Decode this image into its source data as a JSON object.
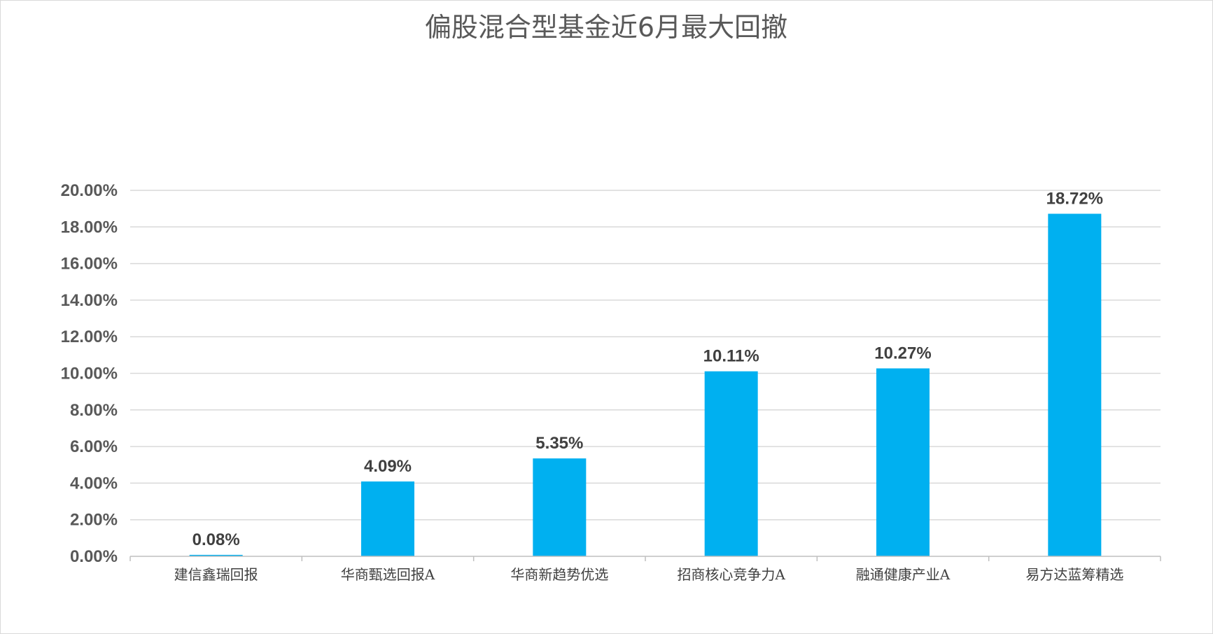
{
  "chart_data": {
    "type": "bar",
    "title": "偏股混合型基金近6月最大回撤",
    "categories": [
      "建信鑫瑞回报",
      "华商甄选回报A",
      "华商新趋势优选",
      "招商核心竞争力A",
      "融通健康产业A",
      "易方达蓝筹精选"
    ],
    "values": [
      0.08,
      4.09,
      5.35,
      10.11,
      10.27,
      18.72
    ],
    "data_labels": [
      "0.08%",
      "4.09%",
      "5.35%",
      "10.11%",
      "10.27%",
      "18.72%"
    ],
    "y_ticks": [
      0,
      2,
      4,
      6,
      8,
      10,
      12,
      14,
      16,
      18,
      20
    ],
    "y_tick_labels": [
      "0.00%",
      "2.00%",
      "4.00%",
      "6.00%",
      "8.00%",
      "10.00%",
      "12.00%",
      "14.00%",
      "16.00%",
      "18.00%",
      "20.00%"
    ],
    "ylim": [
      0,
      20
    ],
    "grid": true,
    "legend": "none",
    "bar_color": "#00B0F0"
  }
}
